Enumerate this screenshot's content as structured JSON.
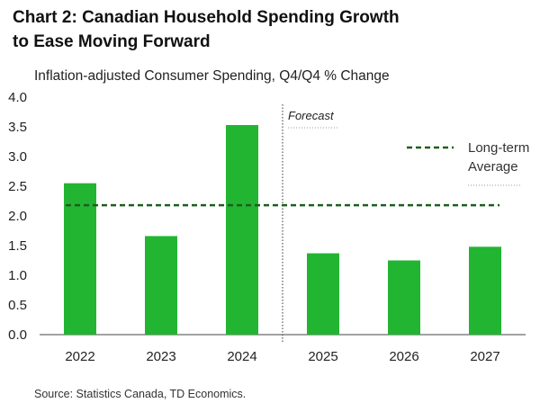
{
  "chart_data": {
    "type": "bar",
    "title": "Chart 2: Canadian Household Spending Growth to Ease Moving Forward",
    "title_lines": [
      "Chart 2: Canadian Household Spending Growth",
      "to Ease Moving Forward"
    ],
    "subtitle": "Inflation-adjusted Consumer Spending, Q4/Q4 % Change",
    "categories": [
      "2022",
      "2023",
      "2024",
      "2025",
      "2026",
      "2027"
    ],
    "values": [
      2.55,
      1.66,
      3.53,
      1.37,
      1.25,
      1.48
    ],
    "ylim": [
      0,
      4.0
    ],
    "yticks": [
      "0.0",
      "0.5",
      "1.0",
      "1.5",
      "2.0",
      "2.5",
      "3.0",
      "3.5",
      "4.0"
    ],
    "bar_color": "#22b532",
    "reference_line": {
      "label_lines": [
        "Long-term",
        "Average"
      ],
      "value": 2.18,
      "color": "#1d5e1d",
      "style": "dashed"
    },
    "forecast_divider": {
      "label": "Forecast",
      "after_category": "2024"
    },
    "grid": false,
    "legend_position": "top-right",
    "source": "Source: Statistics Canada, TD Economics."
  }
}
